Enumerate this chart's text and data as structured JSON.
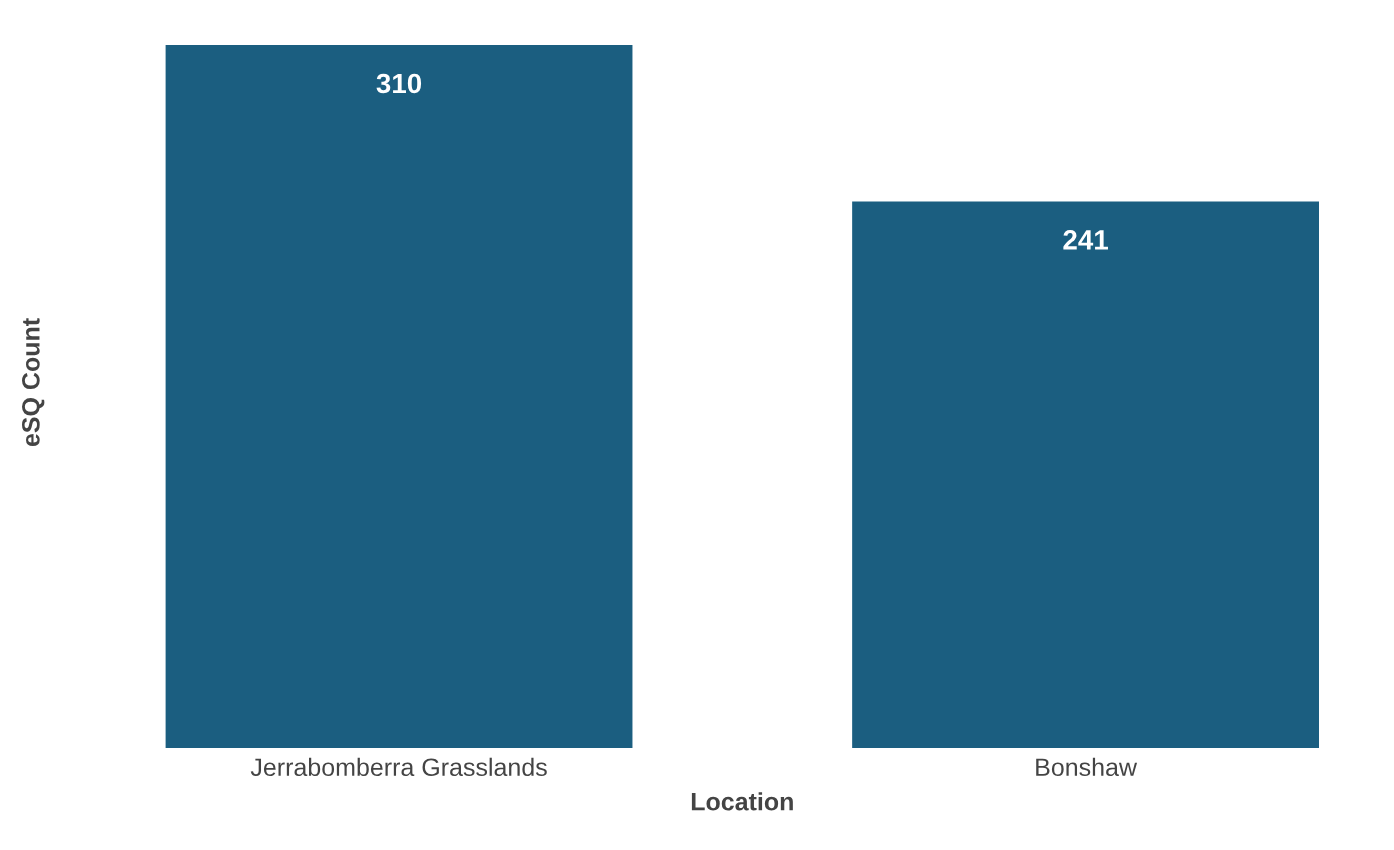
{
  "chart_data": {
    "type": "bar",
    "xlabel": "Location",
    "ylabel": "eSQ Count",
    "categories": [
      "Jerrabomberra Grasslands",
      "Bonshaw"
    ],
    "values": [
      310,
      241
    ],
    "color": "#1b5e80",
    "data_labels": true,
    "grid": false,
    "legend": false
  }
}
